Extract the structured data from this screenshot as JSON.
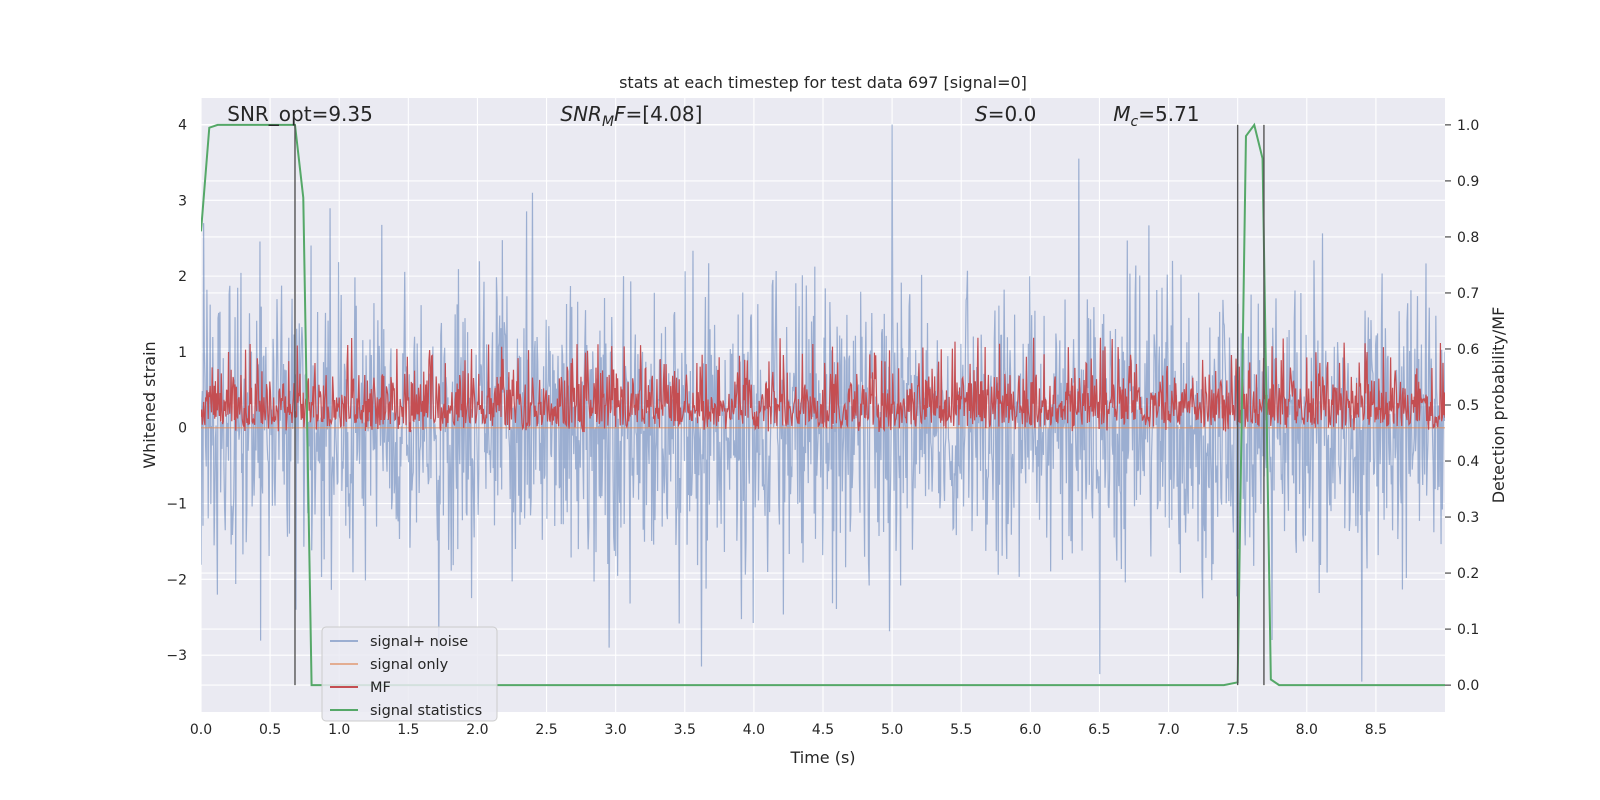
{
  "chart_data": {
    "type": "line",
    "title": "stats at each timestep for test data 697 [signal=0]",
    "xlabel": "Time (s)",
    "ylabel": "Whitened strain",
    "y2label": "Detection probability/MF",
    "xlim": [
      0,
      9.0
    ],
    "ylim": [
      -3.75,
      4.35
    ],
    "y2lim": [
      -0.048,
      1.048
    ],
    "xticks": [
      "0.0",
      "0.5",
      "1.0",
      "1.5",
      "2.0",
      "2.5",
      "3.0",
      "3.5",
      "4.0",
      "4.5",
      "5.0",
      "5.5",
      "6.0",
      "6.5",
      "7.0",
      "7.5",
      "8.0",
      "8.5"
    ],
    "yticks": [
      "4",
      "3",
      "2",
      "1",
      "0",
      "−1",
      "−2",
      "−3"
    ],
    "y2ticks": [
      "1.0",
      "0.9",
      "0.8",
      "0.7",
      "0.6",
      "0.5",
      "0.4",
      "0.3",
      "0.2",
      "0.1",
      "0.0"
    ],
    "grid": true,
    "legend_position": "lower-left",
    "annotations": [
      {
        "text_main": "SNR_opt=9.35",
        "x": 0.19,
        "y": 4.1
      },
      {
        "italic": "SNR",
        "sub": "M",
        "italic2": "F",
        "rest": "=[4.08]",
        "x": 2.6,
        "y": 4.1
      },
      {
        "italic": "S",
        "rest": "=0.0",
        "x": 5.6,
        "y": 4.1
      },
      {
        "italic": "M",
        "sub": "c",
        "rest": "=5.71",
        "x": 6.6,
        "y": 4.1
      }
    ],
    "series": [
      {
        "name": "signal+ noise",
        "color": "#4c72b0",
        "opacity": 0.5,
        "axis": "left",
        "description_note_omitted": true,
        "peaks": [
          {
            "x": 5.0,
            "y": 4.0
          },
          {
            "x": 6.35,
            "y": 3.55
          },
          {
            "x": 2.4,
            "y": 3.1
          },
          {
            "x": 0.02,
            "y": 2.7
          },
          {
            "x": 8.4,
            "y": -3.35
          },
          {
            "x": 6.5,
            "y": -3.25
          },
          {
            "x": 3.62,
            "y": -3.15
          },
          {
            "x": 7.75,
            "y": -2.8
          }
        ],
        "amplitude_range": [
          -3.35,
          4.0
        ]
      },
      {
        "name": "signal only",
        "color": "#dd8452",
        "opacity": 0.6,
        "axis": "left",
        "values_y": 0.0
      },
      {
        "name": "MF",
        "color": "#c44e52",
        "axis": "right",
        "band": [
          0.45,
          0.62
        ]
      },
      {
        "name": "signal statistics",
        "color": "#55a868",
        "axis": "right",
        "x": [
          0.0,
          0.06,
          0.12,
          0.2,
          0.3,
          0.4,
          0.5,
          0.6,
          0.68,
          0.74,
          0.8,
          0.86,
          1.0,
          2.0,
          3.0,
          4.0,
          5.0,
          6.0,
          7.0,
          7.4,
          7.5,
          7.56,
          7.62,
          7.68,
          7.74,
          7.8,
          7.9,
          8.5,
          9.0
        ],
        "y": [
          0.81,
          0.995,
          1.0,
          1.0,
          1.0,
          1.0,
          1.0,
          1.0,
          1.0,
          0.87,
          0.0,
          0.0,
          0.0,
          0.0,
          0.0,
          0.0,
          0.0,
          0.0,
          0.0,
          0.0,
          0.005,
          0.98,
          1.0,
          0.94,
          0.01,
          0.0,
          0.0,
          0.0,
          0.0
        ]
      }
    ],
    "vlines": [
      0.68,
      7.5,
      7.69
    ],
    "colors": {
      "plot_bg": "#eaeaf2",
      "grid": "#ffffff",
      "vline": "#555555"
    }
  }
}
